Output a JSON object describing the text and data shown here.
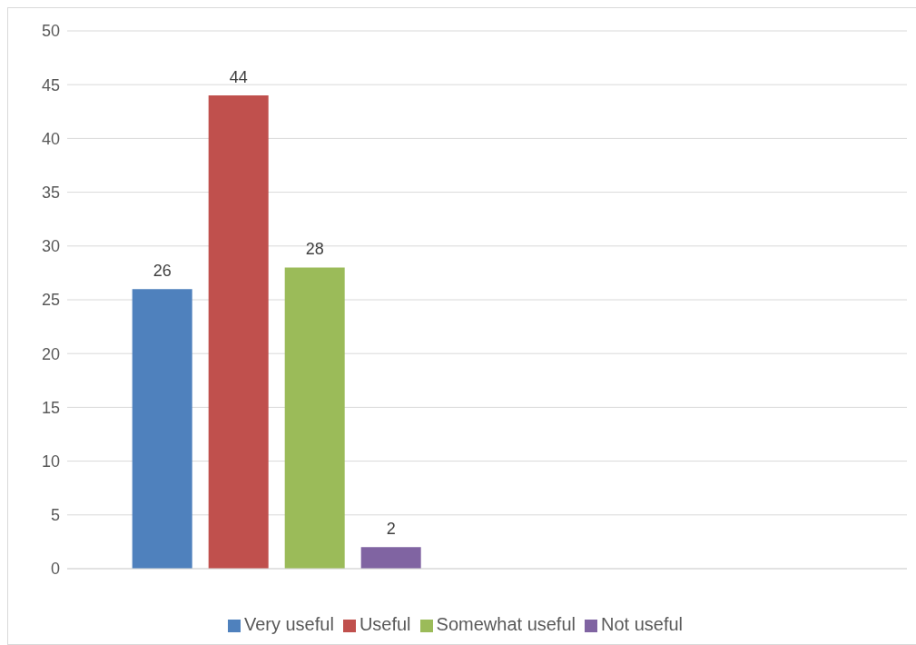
{
  "chart_data": {
    "type": "bar",
    "categories": [
      null,
      null
    ],
    "series": [
      {
        "name": "Very useful",
        "color": "#4f81bd",
        "values": [
          26,
          null
        ]
      },
      {
        "name": "Useful",
        "color": "#c0504d",
        "values": [
          44,
          null
        ]
      },
      {
        "name": "Somewhat useful",
        "color": "#9bbb59",
        "values": [
          28,
          null
        ]
      },
      {
        "name": "Not useful",
        "color": "#8064a2",
        "values": [
          2,
          null
        ]
      }
    ],
    "ylim": [
      0,
      50
    ],
    "yticks": [
      0,
      5,
      10,
      15,
      20,
      25,
      30,
      35,
      40,
      45,
      50
    ],
    "grid": "y",
    "legend": "bottom",
    "data_labels": true
  }
}
